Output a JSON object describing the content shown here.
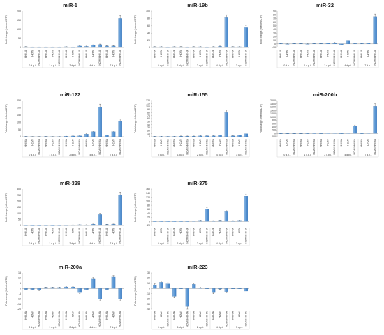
{
  "chart_data": [
    {
      "type": "bar",
      "title": "miR-1",
      "ylabel": "Fold change (Infected/CTR)",
      "ylim": [
        0,
        200
      ],
      "yticks": [
        0,
        50,
        100,
        150,
        200
      ],
      "category_labels": [
        "HHV-6A",
        "HCMV",
        "HCMV/HHV-6A"
      ],
      "group_labels": [
        "0 d.p.i.",
        "1 d.p.i.",
        "2 d.p.i.",
        "4 d.p.i.",
        "7 d.p.i."
      ],
      "values": [
        4,
        2,
        2,
        2,
        2,
        2,
        4,
        2,
        8,
        6,
        12,
        16,
        8,
        8,
        160
      ],
      "errors": [
        1,
        1,
        1,
        1,
        1,
        1,
        1,
        1,
        2,
        2,
        3,
        3,
        2,
        2,
        15
      ]
    },
    {
      "type": "bar",
      "title": "miR-19b",
      "ylabel": "Fold change (Infected/CTR)",
      "ylim": [
        0,
        100
      ],
      "yticks": [
        0,
        20,
        40,
        60,
        80,
        100
      ],
      "category_labels": [
        "HHV-6A",
        "HCMV",
        "HCMV/HHV-6A"
      ],
      "group_labels": [
        "0 d.p.i.",
        "1 d.p.i.",
        "2 d.p.i.",
        "4 d.p.i.",
        "7 d.p.i."
      ],
      "values": [
        2,
        2,
        1,
        2,
        2,
        1,
        2,
        2,
        1,
        2,
        3,
        82,
        2,
        2,
        55
      ],
      "errors": [
        0.5,
        0.5,
        0.5,
        0.5,
        0.5,
        0.5,
        0.5,
        0.5,
        0.5,
        0.5,
        1,
        8,
        0.5,
        0.5,
        6
      ]
    },
    {
      "type": "bar",
      "title": "miR-32",
      "ylabel": "Fold change (Infected/CTR)",
      "ylim": [
        -10,
        90
      ],
      "yticks": [
        -10,
        0,
        10,
        20,
        30,
        40,
        50,
        60,
        70,
        80,
        90
      ],
      "category_labels": [
        "HHV-6A",
        "HCMV",
        "HCMV/HHV-6A"
      ],
      "group_labels": [
        "0 d.p.i.",
        "1 d.p.i.",
        "2 d.p.i.",
        "4 d.p.i.",
        "7 d.p.i."
      ],
      "values": [
        1,
        0,
        1,
        1,
        0,
        1,
        1,
        2,
        3,
        -2,
        8,
        1,
        1,
        2,
        75
      ],
      "errors": [
        0.5,
        0.5,
        0.5,
        0.5,
        0.5,
        0.5,
        0.5,
        0.5,
        1,
        1,
        1.5,
        0.5,
        0.5,
        0.5,
        7
      ]
    },
    {
      "type": "bar",
      "title": "miR-122",
      "ylabel": "Fold change (Infected/CTR)",
      "ylim": [
        0,
        250
      ],
      "yticks": [
        0,
        50,
        100,
        150,
        200,
        250
      ],
      "category_labels": [
        "HHV-6A",
        "HCMV",
        "HCMV/HHV-6A"
      ],
      "group_labels": [
        "0 d.p.i.",
        "1 d.p.i.",
        "2 d.p.i.",
        "4 d.p.i.",
        "7 d.p.i."
      ],
      "values": [
        2,
        1,
        1,
        2,
        1,
        1,
        3,
        5,
        6,
        18,
        35,
        205,
        10,
        35,
        110
      ],
      "errors": [
        0.5,
        0.5,
        0.5,
        0.5,
        0.5,
        0.5,
        1,
        1,
        1,
        3,
        4,
        20,
        2,
        5,
        12
      ]
    },
    {
      "type": "bar",
      "title": "miR-155",
      "ylabel": "Fold change (Infected/CTR)",
      "ylim": [
        0,
        120
      ],
      "yticks": [
        0,
        10,
        20,
        30,
        40,
        50,
        60,
        70,
        80,
        90,
        100,
        110,
        120
      ],
      "category_labels": [
        "HHV-6A",
        "HCMV",
        "HCMV/HHV-6A"
      ],
      "group_labels": [
        "0 d.p.i.",
        "1 d.p.i.",
        "2 d.p.i.",
        "4 d.p.i.",
        "7 d.p.i."
      ],
      "values": [
        1,
        1,
        1,
        1,
        2,
        2,
        2,
        3,
        3,
        3,
        5,
        80,
        3,
        5,
        10
      ],
      "errors": [
        0.5,
        0.5,
        0.5,
        0.5,
        0.5,
        0.5,
        0.5,
        0.5,
        0.5,
        0.5,
        1,
        8,
        0.5,
        1,
        2
      ]
    },
    {
      "type": "bar",
      "title": "miR-200b",
      "ylabel": "Fold change (Infected/CTR)",
      "ylim": [
        -200,
        2000
      ],
      "yticks": [
        -200,
        0,
        200,
        400,
        600,
        800,
        1000,
        1200,
        1400,
        1600,
        1800,
        2000
      ],
      "category_labels": [
        "HHV-6A",
        "HCMV",
        "HCMV/HHV-6A"
      ],
      "group_labels": [
        "0 d.p.i.",
        "1 d.p.i.",
        "2 d.p.i.",
        "4 d.p.i.",
        "7 d.p.i."
      ],
      "values": [
        5,
        5,
        5,
        5,
        10,
        15,
        10,
        20,
        25,
        10,
        30,
        450,
        10,
        30,
        1650
      ],
      "errors": [
        3,
        3,
        3,
        3,
        3,
        3,
        3,
        5,
        5,
        3,
        5,
        60,
        3,
        10,
        150
      ]
    },
    {
      "type": "bar",
      "title": "miR-328",
      "ylabel": "Fold change (Infected/CTR)",
      "ylim": [
        0,
        300
      ],
      "yticks": [
        0,
        50,
        100,
        150,
        200,
        250,
        300
      ],
      "category_labels": [
        "HHV-6A",
        "HCMV",
        "HCMV/HHV-6A"
      ],
      "group_labels": [
        "0 d.p.i.",
        "1 d.p.i.",
        "2 d.p.i.",
        "4 d.p.i.",
        "7 d.p.i."
      ],
      "values": [
        2,
        1,
        1,
        2,
        1,
        2,
        3,
        4,
        6,
        5,
        10,
        90,
        8,
        10,
        250
      ],
      "errors": [
        0.5,
        0.5,
        0.5,
        0.5,
        0.5,
        0.5,
        1,
        1,
        1,
        1,
        2,
        10,
        2,
        2,
        25
      ]
    },
    {
      "type": "bar",
      "title": "miR-375",
      "ylabel": "Fold change (Infected/CTR)",
      "ylim": [
        -20,
        160
      ],
      "yticks": [
        -20,
        0,
        20,
        40,
        60,
        80,
        100,
        120,
        140,
        160
      ],
      "category_labels": [
        "HHV-6A",
        "HCMV",
        "HCMV/HHV-6A"
      ],
      "group_labels": [
        "0 d.p.i.",
        "1 d.p.i.",
        "2 d.p.i.",
        "4 d.p.i.",
        "7 d.p.i."
      ],
      "values": [
        1,
        1,
        1,
        1,
        1,
        1,
        2,
        5,
        62,
        3,
        5,
        48,
        3,
        5,
        125
      ],
      "errors": [
        0.5,
        0.5,
        0.5,
        0.5,
        0.5,
        0.5,
        0.5,
        1,
        6,
        1,
        1,
        5,
        1,
        1,
        10
      ]
    },
    {
      "type": "bar",
      "title": "miR-200a",
      "ylabel": "Fold change (Infected/CTR)",
      "ylim": [
        -20,
        15
      ],
      "yticks": [
        -20,
        -15,
        -10,
        -5,
        0,
        5,
        10,
        15
      ],
      "category_labels": [
        "HHV-6A",
        "HCMV",
        "HCMV/HHV-6A"
      ],
      "group_labels": [
        "0 d.p.i.",
        "1 d.p.i.",
        "2 d.p.i.",
        "4 d.p.i.",
        "7 d.p.i."
      ],
      "values": [
        -1,
        -1,
        -1.5,
        1,
        1,
        1,
        1.5,
        1.5,
        -4,
        -1,
        9,
        -10,
        -1,
        11,
        -10
      ],
      "errors": [
        0.3,
        0.3,
        0.5,
        0.3,
        0.3,
        0.3,
        0.5,
        0.5,
        1,
        0.5,
        1.5,
        2,
        0.5,
        1.5,
        2
      ]
    },
    {
      "type": "bar",
      "title": "miR-223",
      "ylabel": "Fold change (Infected/CTR)",
      "ylim": [
        -40,
        30
      ],
      "yticks": [
        -40,
        -30,
        -20,
        -10,
        0,
        10,
        20,
        30
      ],
      "category_labels": [
        "HHV-6A",
        "HCMV",
        "HCMV/HHV-6A"
      ],
      "group_labels": [
        "0 d.p.i.",
        "1 d.p.i.",
        "2 d.p.i.",
        "4 d.p.i.",
        "7 d.p.i."
      ],
      "values": [
        7,
        12,
        9,
        -15,
        0,
        -35,
        8,
        1,
        0,
        -8,
        -1,
        -6,
        0,
        0,
        -5
      ],
      "errors": [
        2,
        2,
        2,
        3,
        1,
        5,
        2,
        1,
        1,
        2,
        1,
        2,
        1,
        1,
        2
      ]
    }
  ],
  "colors": {
    "bar_light": "#8db8e3",
    "bar_dark": "#3e7fc6",
    "bar_edge": "#2c68a8",
    "axis": "#999999",
    "text": "#333333",
    "title": "#222222"
  }
}
